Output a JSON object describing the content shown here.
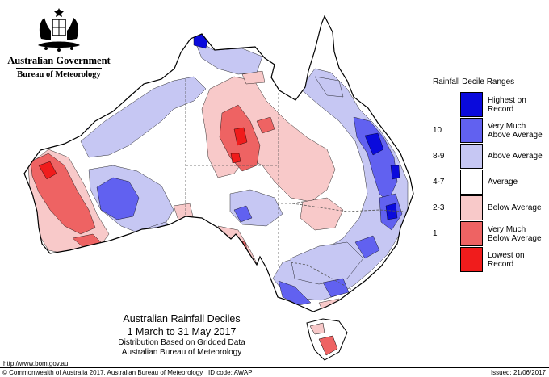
{
  "logo": {
    "government": "Australian Government",
    "bureau": "Bureau of Meteorology"
  },
  "legend": {
    "title": "Rainfall Decile Ranges",
    "items": [
      {
        "range": "",
        "label": "Highest on Record",
        "color": "#0a0adc"
      },
      {
        "range": "10",
        "label": "Very Much Above Average",
        "color": "#6161f0"
      },
      {
        "range": "8-9",
        "label": "Above Average",
        "color": "#c6c7f3"
      },
      {
        "range": "4-7",
        "label": "Average",
        "color": "#ffffff"
      },
      {
        "range": "2-3",
        "label": "Below Average",
        "color": "#f8c9c9"
      },
      {
        "range": "1",
        "label": "Very Much Below Average",
        "color": "#ee6363"
      },
      {
        "range": "",
        "label": "Lowest on Record",
        "color": "#f01c1c"
      }
    ]
  },
  "map_title": {
    "line1": "Australian Rainfall Deciles",
    "line2": "1 March to 31 May 2017",
    "line3": "Distribution Based on Gridded Data",
    "line4": "Australian Bureau of Meteorology"
  },
  "footer": {
    "url": "http://www.bom.gov.au",
    "copyright": "© Commonwealth of Australia 2017, Australian Bureau of Meteorology",
    "id_code": "ID code: AWAP",
    "issued": "Issued: 21/06/2017"
  }
}
